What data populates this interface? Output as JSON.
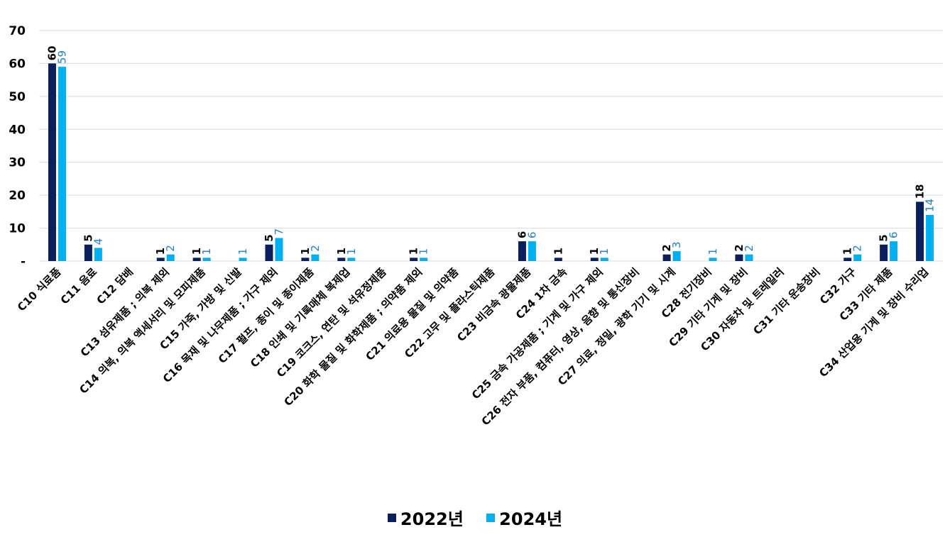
{
  "chart_data": {
    "type": "bar",
    "title": "",
    "xlabel": "",
    "ylabel": "",
    "ylim": [
      0,
      70
    ],
    "yticks": [
      0,
      10,
      20,
      30,
      40,
      50,
      60,
      70
    ],
    "zero_tick_label": "-",
    "grid": true,
    "legend_position": "bottom",
    "categories": [
      "C10 식료품",
      "C11 음료",
      "C12 담배",
      "C13 섬유제품 ; 의복 제외",
      "C14 의복, 의복 액세서리 및 모피제품",
      "C15 가죽, 가방 및 신발",
      "C16 목재 및 나무제품 ; 가구 제외",
      "C17 펄프, 종이 및 종이제품",
      "C18 인쇄 및 기록매체 복제업",
      "C19 코크스, 연탄 및 석유정제품",
      "C20 화학 물질 및 화학제품 ; 의약품 제외",
      "C21 의료용 물질 및 의약품",
      "C22 고무 및 플라스틱제품",
      "C23 비금속 광물제품",
      "C24 1차 금속",
      "C25 금속 가공제품 ; 기계 및 가구 제외",
      "C26 전자 부품, 컴퓨터, 영상, 음향 및 통신장비",
      "C27 의료, 정밀, 광학 기기 및 시계",
      "C28 전기장비",
      "C29 기타 기계 및 장비",
      "C30 자동차 및 트레일러",
      "C31 기타 운송장비",
      "C32 가구",
      "C33 기타 제품",
      "C34 산업용 기계 및 장비 수리업"
    ],
    "series": [
      {
        "name": "2022년",
        "color": "#0a1f5c",
        "values": [
          60,
          5,
          null,
          1,
          1,
          null,
          5,
          1,
          1,
          null,
          1,
          null,
          null,
          6,
          1,
          1,
          null,
          2,
          null,
          2,
          null,
          null,
          1,
          5,
          18
        ]
      },
      {
        "name": "2024년",
        "color": "#00b0f0",
        "values": [
          59,
          4,
          null,
          2,
          1,
          1,
          7,
          2,
          1,
          null,
          1,
          null,
          null,
          6,
          null,
          1,
          null,
          3,
          1,
          2,
          null,
          null,
          2,
          6,
          14
        ]
      }
    ]
  }
}
